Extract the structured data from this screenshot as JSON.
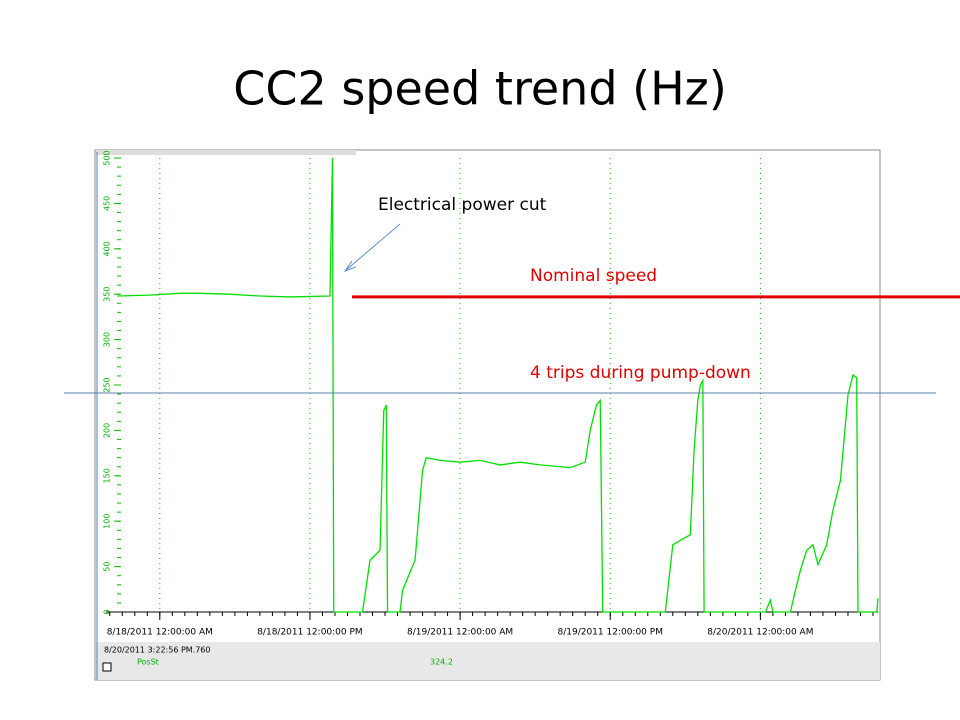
{
  "chart_data": {
    "type": "line",
    "title": "CC2 speed trend (Hz)",
    "xlim": [
      -4.3,
      57.4
    ],
    "ylim": [
      0,
      500
    ],
    "yticks": [
      0,
      50,
      100,
      150,
      200,
      250,
      300,
      350,
      400,
      450,
      500
    ],
    "xticks": [
      {
        "value": 0,
        "label": "8/18/2011 12:00:00 AM"
      },
      {
        "value": 12,
        "label": "8/18/2011 12:00:00 PM"
      },
      {
        "value": 24,
        "label": "8/19/2011 12:00:00 AM"
      },
      {
        "value": 36,
        "label": "8/19/2011 12:00:00 PM"
      },
      {
        "value": 48,
        "label": "8/20/2011 12:00:00 AM"
      }
    ],
    "grid": true,
    "series": [
      {
        "color": "#00e000",
        "x": [
          -3.4,
          -0.8,
          1.6,
          3.2,
          5.6,
          8,
          10.4,
          13.6,
          13.8,
          13.9,
          16.2,
          16.8,
          17.6,
          17.9,
          18.1,
          18.2,
          19.2,
          19.4,
          20.4,
          21,
          21.3,
          22.4,
          24,
          25.6,
          27.2,
          28.8,
          30.4,
          32.8,
          34,
          34.4,
          34.9,
          35.2,
          35.4,
          40.4,
          41,
          41.6,
          42.4,
          42.7,
          43,
          43.2,
          43.4,
          43.5,
          48.4,
          48.8,
          49,
          50.4,
          50.8,
          51.2,
          51.7,
          52.2,
          52.6,
          53.3,
          53.8,
          54.4,
          55,
          55.4,
          55.7,
          55.8,
          57.3,
          57.4
        ],
        "values": [
          348,
          349,
          351,
          351,
          350,
          348,
          347,
          348,
          500,
          0,
          0,
          57,
          68,
          222,
          228,
          0,
          0,
          24,
          57,
          156,
          170,
          167,
          165,
          167,
          162,
          165,
          162,
          159,
          165,
          200,
          228,
          233,
          0,
          0,
          74,
          79,
          85,
          178,
          233,
          250,
          255,
          0,
          0,
          13,
          0,
          0,
          24,
          46,
          68,
          74,
          52,
          74,
          112,
          145,
          239,
          261,
          258,
          0,
          0,
          15
        ]
      }
    ],
    "annotations": [
      {
        "text": "Electrical power cut"
      },
      {
        "text": "Nominal speed",
        "value": 347,
        "color": "#e00000"
      },
      {
        "text": "4 trips during pump-down",
        "color": "#e00000"
      }
    ]
  },
  "status": {
    "timestamp": "8/20/2011 3:22:56 PM.760",
    "tag": "PosSt",
    "value": "324.2"
  }
}
